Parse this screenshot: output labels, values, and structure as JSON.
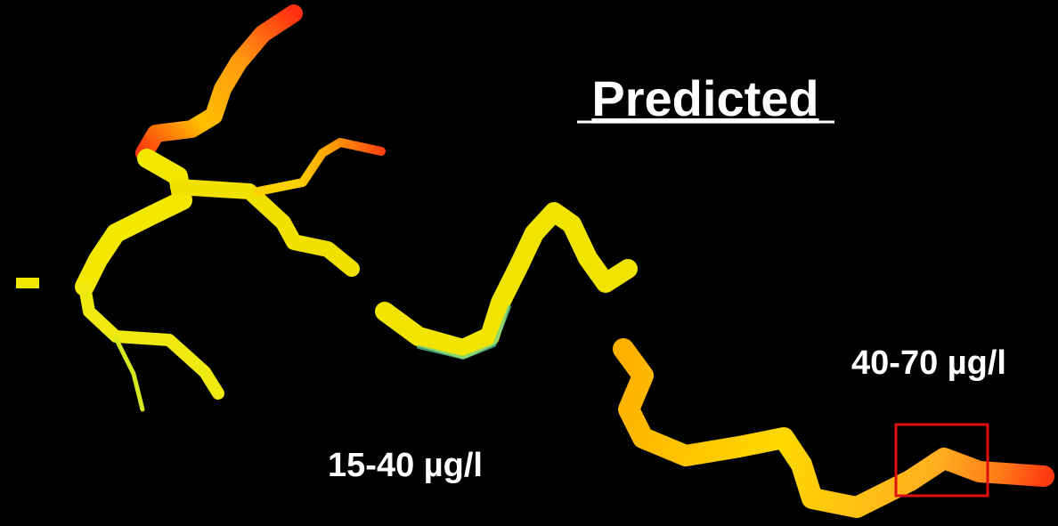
{
  "title": "Predicted",
  "annotations": [
    {
      "text": "40-70 µg/l"
    },
    {
      "text": "15-40 µg/l"
    }
  ]
}
